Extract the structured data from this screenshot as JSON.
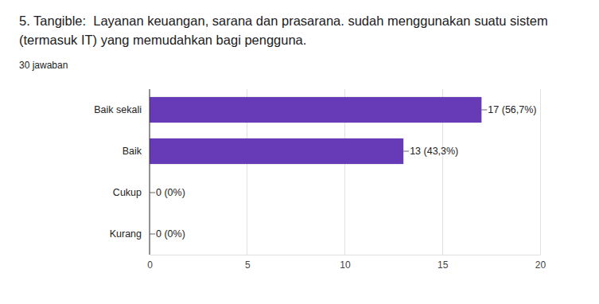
{
  "chart_data": {
    "type": "bar",
    "orientation": "horizontal",
    "title": "5. Tangible:  Layanan keuangan, sarana dan prasarana. sudah menggunakan suatu sistem (termasuk IT) yang memudahkan bagi pengguna.",
    "subtitle": "30 jawaban",
    "categories": [
      "Baik sekali",
      "Baik",
      "Cukup",
      "Kurang"
    ],
    "values": [
      17,
      13,
      0,
      0
    ],
    "value_labels": [
      "17 (56,7%)",
      "13 (43,3%)",
      "0 (0%)",
      "0 (0%)"
    ],
    "color": "#673ab7",
    "xlim": [
      0,
      20
    ],
    "xticks": [
      0,
      5,
      10,
      15,
      20
    ],
    "grid": true,
    "data_labels": true
  }
}
